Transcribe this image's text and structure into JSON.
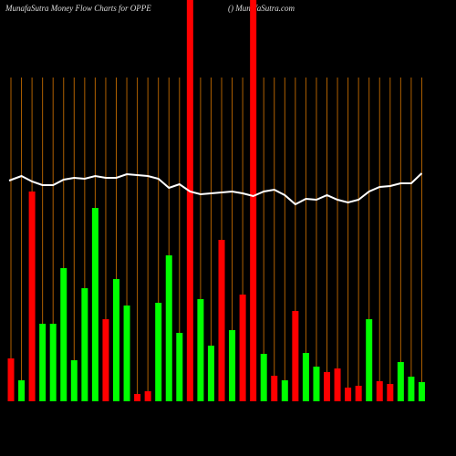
{
  "chart_data": {
    "type": "bar",
    "title": "MunafaSutra  Money Flow  Charts for OPPE",
    "subtitle": "() MunafaSutra.com",
    "ylim": [
      0,
      440
    ],
    "values": [
      47,
      23,
      230,
      85,
      85,
      146,
      45,
      124,
      212,
      90,
      134,
      105,
      8,
      11,
      108,
      160,
      75,
      440,
      112,
      61,
      177,
      78,
      117,
      440,
      52,
      28,
      23,
      99,
      53,
      38,
      32,
      36,
      15,
      17,
      90,
      22,
      19,
      43,
      27,
      21
    ],
    "colors": [
      "#ff0000",
      "#00ff00",
      "#ff0000",
      "#00ff00",
      "#00ff00",
      "#00ff00",
      "#00ff00",
      "#00ff00",
      "#00ff00",
      "#ff0000",
      "#00ff00",
      "#00ff00",
      "#ff0000",
      "#ff0000",
      "#00ff00",
      "#00ff00",
      "#00ff00",
      "#ff0000",
      "#00ff00",
      "#00ff00",
      "#ff0000",
      "#00ff00",
      "#ff0000",
      "#ff0000",
      "#00ff00",
      "#ff0000",
      "#00ff00",
      "#ff0000",
      "#00ff00",
      "#00ff00",
      "#ff0000",
      "#ff0000",
      "#ff0000",
      "#ff0000",
      "#00ff00",
      "#ff0000",
      "#ff0000",
      "#00ff00",
      "#00ff00",
      "#00ff00"
    ],
    "line": {
      "color": "#ffffff",
      "values": [
        242,
        247,
        241,
        237,
        237,
        243,
        245,
        244,
        247,
        245,
        245,
        249,
        248,
        247,
        244,
        234,
        238,
        230,
        227,
        228,
        229,
        230,
        228,
        225,
        230,
        232,
        226,
        216,
        222,
        221,
        226,
        221,
        218,
        221,
        230,
        235,
        236,
        239,
        239,
        250
      ]
    },
    "gridline_color": "#b06000"
  }
}
